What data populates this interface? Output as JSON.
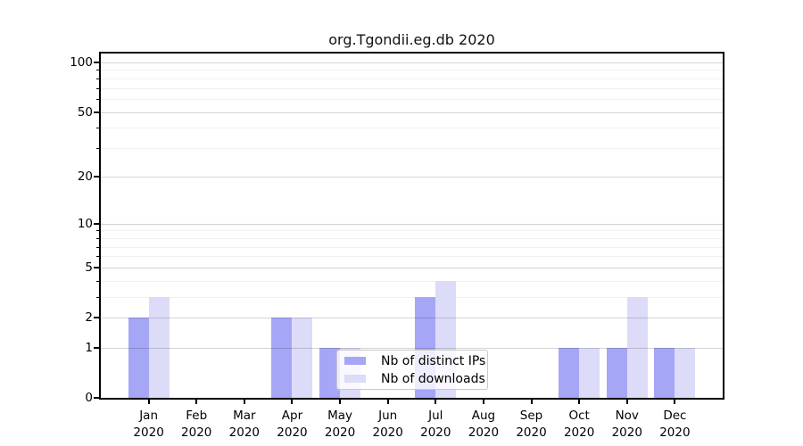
{
  "chart_data": {
    "type": "bar",
    "title": "org.Tgondii.eg.db 2020",
    "categories": [
      "Jan 2020",
      "Feb 2020",
      "Mar 2020",
      "Apr 2020",
      "May 2020",
      "Jun 2020",
      "Jul 2020",
      "Aug 2020",
      "Sep 2020",
      "Oct 2020",
      "Nov 2020",
      "Dec 2020"
    ],
    "series": [
      {
        "name": "Nb of distinct IPs",
        "color": "#a6a6f7",
        "values": [
          2,
          0,
          0,
          2,
          1,
          0,
          3,
          0,
          0,
          1,
          1,
          1
        ]
      },
      {
        "name": "Nb of downloads",
        "color": "#dcdcf8",
        "values": [
          3,
          0,
          0,
          2,
          1,
          0,
          4,
          0,
          0,
          1,
          3,
          1
        ]
      }
    ],
    "yscale": "log1p",
    "yticks": [
      0,
      1,
      2,
      5,
      10,
      20,
      50,
      100
    ],
    "minor_yticks": [
      3,
      4,
      6,
      7,
      8,
      9,
      30,
      40,
      60,
      70,
      80,
      90
    ],
    "ylim": [
      0,
      113
    ],
    "xlabel": "",
    "ylabel": "",
    "grid": "on",
    "legend_position": "lower center inside plot"
  }
}
